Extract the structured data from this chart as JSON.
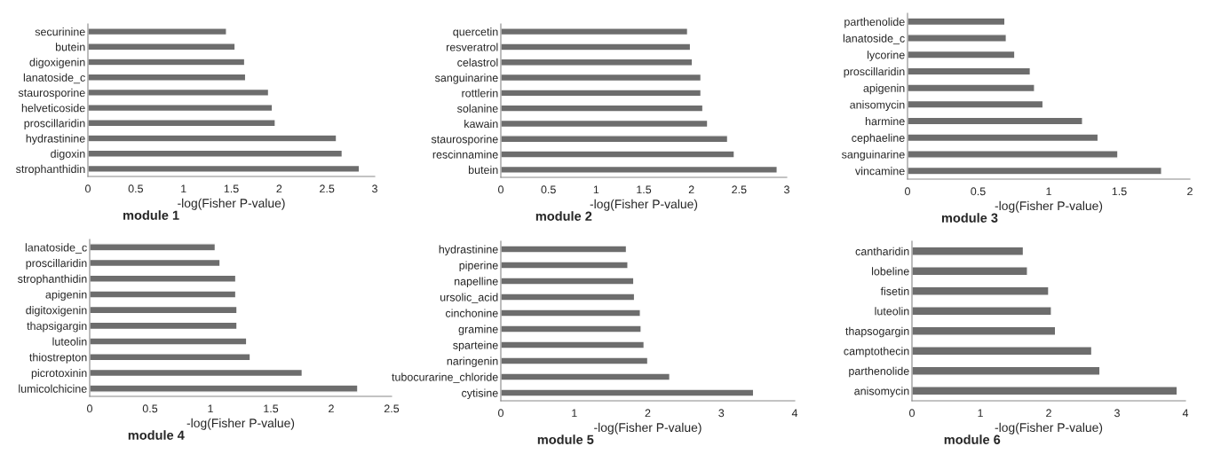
{
  "chart_data": [
    {
      "type": "bar",
      "orientation": "horizontal",
      "title": "module 1",
      "xlabel": "-log(Fisher P-value)",
      "color": "#6d6d6d",
      "xlim": [
        0,
        3
      ],
      "xticks": [
        0,
        0.5,
        1,
        1.5,
        2,
        2.5,
        3
      ],
      "categories": [
        "securinine",
        "butein",
        "digoxigenin",
        "lanatoside_c",
        "staurosporine",
        "helveticoside",
        "proscillaridin",
        "hydrastinine",
        "digoxin",
        "strophanthidin"
      ],
      "values": [
        1.45,
        1.54,
        1.64,
        1.65,
        1.89,
        1.93,
        1.96,
        2.6,
        2.66,
        2.84
      ]
    },
    {
      "type": "bar",
      "orientation": "horizontal",
      "title": "module 2",
      "xlabel": "-log(Fisher P-value)",
      "color": "#6d6d6d",
      "xlim": [
        0,
        3
      ],
      "xticks": [
        0,
        0.5,
        1,
        1.5,
        2,
        2.5,
        3
      ],
      "categories": [
        "quercetin",
        "resveratrol",
        "celastrol",
        "sanguinarine",
        "rottlerin",
        "solanine",
        "kawain",
        "staurosporine",
        "rescinnamine",
        "butein"
      ],
      "values": [
        1.96,
        1.99,
        2.01,
        2.1,
        2.1,
        2.12,
        2.17,
        2.38,
        2.45,
        2.9
      ]
    },
    {
      "type": "bar",
      "orientation": "horizontal",
      "title": "module 3",
      "xlabel": "-log(Fisher P-value)",
      "color": "#6d6d6d",
      "xlim": [
        0,
        2
      ],
      "xticks": [
        0,
        0.5,
        1,
        1.5,
        2
      ],
      "categories": [
        "parthenolide",
        "lanatoside_c",
        "lycorine",
        "proscillaridin",
        "apigenin",
        "anisomycin",
        "harmine",
        "cephaeline",
        "sanguinarine",
        "vincamine"
      ],
      "values": [
        0.69,
        0.7,
        0.76,
        0.87,
        0.9,
        0.96,
        1.24,
        1.35,
        1.49,
        1.8
      ]
    },
    {
      "type": "bar",
      "orientation": "horizontal",
      "title": "module 4",
      "xlabel": "-log(Fisher P-value)",
      "color": "#6d6d6d",
      "xlim": [
        0,
        2.5
      ],
      "xticks": [
        0,
        0.5,
        1,
        1.5,
        2,
        2.5
      ],
      "categories": [
        "lanatoside_c",
        "proscillaridin",
        "strophanthidin",
        "apigenin",
        "digitoxigenin",
        "thapsigargin",
        "luteolin",
        "thiostrepton",
        "picrotoxinin",
        "lumicolchicine"
      ],
      "values": [
        1.04,
        1.08,
        1.21,
        1.21,
        1.22,
        1.22,
        1.3,
        1.33,
        1.76,
        2.22
      ]
    },
    {
      "type": "bar",
      "orientation": "horizontal",
      "title": "module 5",
      "xlabel": "-log(Fisher P-value)",
      "color": "#6d6d6d",
      "xlim": [
        0,
        4
      ],
      "xticks": [
        0,
        1,
        2,
        3,
        4
      ],
      "categories": [
        "hydrastinine",
        "piperine",
        "napelline",
        "ursolic_acid",
        "cinchonine",
        "gramine",
        "sparteine",
        "naringenin",
        "tubocurarine_chloride",
        "cytisine"
      ],
      "values": [
        1.71,
        1.73,
        1.81,
        1.82,
        1.9,
        1.91,
        1.95,
        2.0,
        2.3,
        3.44
      ]
    },
    {
      "type": "bar",
      "orientation": "horizontal",
      "title": "module 6",
      "xlabel": "-log(Fisher P-value)",
      "color": "#6d6d6d",
      "xlim": [
        0,
        4
      ],
      "xticks": [
        0,
        1,
        2,
        3,
        4
      ],
      "categories": [
        "cantharidin",
        "lobeline",
        "fisetin",
        "luteolin",
        "thapsogargin",
        "camptothecin",
        "parthenolide",
        "anisomycin"
      ],
      "values": [
        1.63,
        1.69,
        2.0,
        2.04,
        2.1,
        2.63,
        2.75,
        3.88
      ]
    }
  ]
}
